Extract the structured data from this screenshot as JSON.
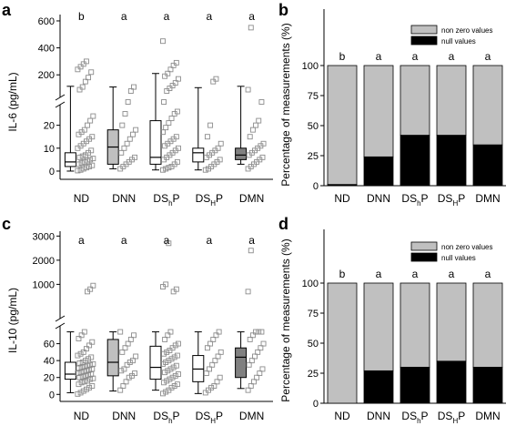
{
  "panels": [
    {
      "letter": "a"
    },
    {
      "letter": "b"
    },
    {
      "letter": "c"
    },
    {
      "letter": "d"
    }
  ],
  "chart_data": [
    {
      "panel": "a",
      "type": "box",
      "ylabel": "IL-6 (pg/mL)",
      "categories": [
        {
          "main": "ND",
          "sub": ""
        },
        {
          "main": "DNN",
          "sub": ""
        },
        {
          "main": "DS",
          "sub": "h",
          "tail": "P"
        },
        {
          "main": "DS",
          "sub": "H",
          "tail": "P"
        },
        {
          "main": "DMN",
          "sub": ""
        }
      ],
      "significance": [
        "b",
        "a",
        "a",
        "a",
        "a"
      ],
      "axis_break": true,
      "y_lower": {
        "range": [
          -2,
          27
        ],
        "ticks": [
          0,
          10,
          20
        ]
      },
      "y_upper": {
        "range": [
          80,
          620
        ],
        "ticks": [
          200,
          400,
          600
        ]
      },
      "box_fills": [
        "#ffffff",
        "#bfbfbf",
        "#ffffff",
        "#ffffff",
        "#808080"
      ],
      "boxes": [
        {
          "whisker_low": 0,
          "q1": 2,
          "median": 4,
          "q3": 8,
          "whisker_high": 115
        },
        {
          "whisker_low": 1,
          "q1": 3,
          "median": 10.5,
          "q3": 18,
          "whisker_high": 110
        },
        {
          "whisker_low": 0.5,
          "q1": 3,
          "median": 6,
          "q3": 22,
          "whisker_high": 210
        },
        {
          "whisker_low": 0.5,
          "q1": 4,
          "median": 8,
          "q3": 10,
          "whisker_high": 105
        },
        {
          "whisker_low": 3,
          "q1": 5,
          "median": 7,
          "q3": 10,
          "whisker_high": 115
        }
      ],
      "points": [
        [
          0.2,
          0.5,
          1,
          1.5,
          2,
          2.5,
          3,
          3.5,
          4,
          4.5,
          5,
          5.5,
          6,
          6.5,
          7,
          8,
          9,
          10,
          11,
          12,
          13,
          14,
          15,
          16,
          17,
          18,
          20,
          22,
          24,
          90,
          110,
          150,
          180,
          220,
          240,
          260,
          280,
          300
        ],
        [
          1,
          2,
          3,
          4,
          5,
          6,
          8,
          10,
          12,
          14,
          16,
          18,
          20,
          25,
          50,
          80,
          110
        ],
        [
          0.5,
          1,
          1.5,
          2,
          3,
          4,
          5,
          6,
          7,
          8,
          9,
          10,
          11,
          12,
          13,
          14,
          15,
          17,
          19,
          21,
          23,
          25,
          26,
          50,
          80,
          100,
          120,
          140,
          170,
          190,
          210,
          240,
          270,
          290,
          450
        ],
        [
          0.5,
          1,
          2,
          3,
          4,
          5,
          6,
          7,
          8,
          9,
          10,
          12,
          15,
          20,
          150,
          170
        ],
        [
          1,
          2,
          3,
          4,
          5,
          6,
          7,
          8,
          9,
          10,
          11,
          12,
          15,
          18,
          20,
          22,
          60,
          90,
          550
        ]
      ]
    },
    {
      "panel": "b",
      "type": "stacked_bar",
      "ylabel": "Percentage of measurements (%)",
      "ylim": [
        0,
        100
      ],
      "yticks": [
        0,
        25,
        50,
        75,
        100
      ],
      "categories": [
        {
          "main": "ND",
          "sub": ""
        },
        {
          "main": "DNN",
          "sub": ""
        },
        {
          "main": "DS",
          "sub": "h",
          "tail": "P"
        },
        {
          "main": "DS",
          "sub": "H",
          "tail": "P"
        },
        {
          "main": "DMN",
          "sub": ""
        }
      ],
      "significance": [
        "b",
        "a",
        "a",
        "a",
        "a"
      ],
      "series": [
        {
          "name": "null values",
          "color": "#000000",
          "values": [
            1,
            24,
            42,
            42,
            34
          ]
        },
        {
          "name": "non zero values",
          "color": "#c0c0c0",
          "values": [
            99,
            76,
            58,
            58,
            66
          ]
        }
      ],
      "legend": "top-right"
    },
    {
      "panel": "c",
      "type": "box",
      "ylabel": "IL-10 (pg/mL)",
      "categories": [
        {
          "main": "ND",
          "sub": ""
        },
        {
          "main": "DNN",
          "sub": ""
        },
        {
          "main": "DS",
          "sub": "h",
          "tail": "P"
        },
        {
          "main": "DS",
          "sub": "H",
          "tail": "P"
        },
        {
          "main": "DMN",
          "sub": ""
        }
      ],
      "significance": [
        "a",
        "a",
        "a",
        "a",
        "a"
      ],
      "axis_break": true,
      "y_lower": {
        "range": [
          -4,
          80
        ],
        "ticks": [
          0,
          20,
          40,
          60
        ]
      },
      "y_upper": {
        "range": [
          600,
          3050
        ],
        "ticks": [
          1000,
          2000,
          3000
        ]
      },
      "box_fills": [
        "#ffffff",
        "#bfbfbf",
        "#ffffff",
        "#ffffff",
        "#808080"
      ],
      "boxes": [
        {
          "whisker_low": 2,
          "q1": 18,
          "median": 24,
          "q3": 38,
          "whisker_high": 74
        },
        {
          "whisker_low": 4,
          "q1": 22,
          "median": 38,
          "q3": 65,
          "whisker_high": 74
        },
        {
          "whisker_low": 5,
          "q1": 18,
          "median": 32,
          "q3": 57,
          "whisker_high": 74
        },
        {
          "whisker_low": 1,
          "q1": 15,
          "median": 30,
          "q3": 46,
          "whisker_high": 74
        },
        {
          "whisker_low": 7,
          "q1": 20,
          "median": 44,
          "q3": 55,
          "whisker_high": 74
        }
      ],
      "points": [
        [
          0.5,
          2,
          4,
          6,
          8,
          10,
          12,
          14,
          15,
          16,
          18,
          19,
          20,
          21,
          22,
          23,
          24,
          25,
          26,
          27,
          28,
          29,
          30,
          31,
          32,
          33,
          34,
          35,
          36,
          37,
          38,
          40,
          42,
          44,
          46,
          48,
          50,
          54,
          58,
          62,
          66,
          70,
          74,
          700,
          800,
          950
        ],
        [
          5,
          10,
          15,
          20,
          22,
          25,
          28,
          30,
          35,
          38,
          40,
          45,
          50,
          55,
          60,
          65,
          70,
          74
        ],
        [
          1,
          3,
          5,
          8,
          10,
          12,
          14,
          16,
          18,
          20,
          22,
          24,
          26,
          28,
          30,
          32,
          34,
          36,
          38,
          40,
          42,
          44,
          46,
          48,
          50,
          52,
          55,
          58,
          60,
          65,
          70,
          74,
          700,
          800,
          900,
          1000,
          2700
        ],
        [
          2,
          5,
          8,
          10,
          15,
          20,
          25,
          30,
          35,
          40,
          45,
          50,
          55,
          60,
          65,
          70,
          74
        ],
        [
          5,
          10,
          15,
          20,
          25,
          30,
          35,
          40,
          45,
          50,
          55,
          60,
          65,
          70,
          74,
          74,
          74,
          700,
          2400
        ]
      ]
    },
    {
      "panel": "d",
      "type": "stacked_bar",
      "ylabel": "Percentage of measurements (%)",
      "ylim": [
        0,
        100
      ],
      "yticks": [
        0,
        25,
        50,
        75,
        100
      ],
      "categories": [
        {
          "main": "ND",
          "sub": ""
        },
        {
          "main": "DNN",
          "sub": ""
        },
        {
          "main": "DS",
          "sub": "h",
          "tail": "P"
        },
        {
          "main": "DS",
          "sub": "H",
          "tail": "P"
        },
        {
          "main": "DMN",
          "sub": ""
        }
      ],
      "significance": [
        "b",
        "a",
        "a",
        "a",
        "a"
      ],
      "series": [
        {
          "name": "null values",
          "color": "#000000",
          "values": [
            0,
            27,
            30,
            35,
            30
          ]
        },
        {
          "name": "non zero values",
          "color": "#c0c0c0",
          "values": [
            100,
            73,
            70,
            65,
            70
          ]
        }
      ],
      "legend": "top-right"
    }
  ]
}
